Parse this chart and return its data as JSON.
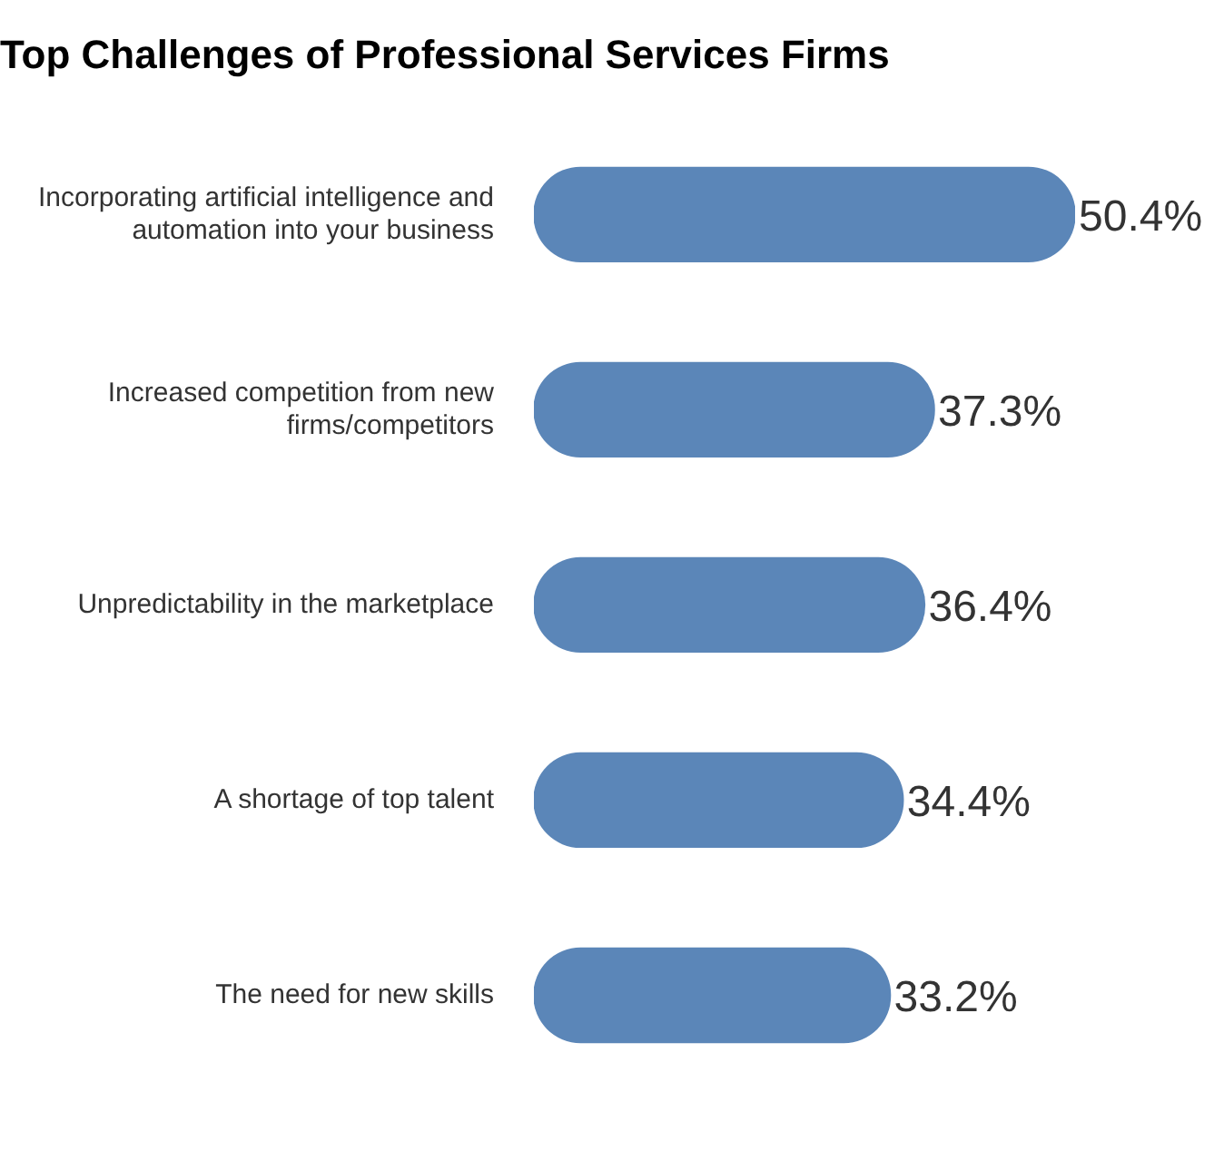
{
  "chart_data": {
    "type": "bar",
    "title": "Top Challenges of Professional Services Firms",
    "orientation": "horizontal",
    "categories": [
      "Incorporating artificial intelligence and automation into your business",
      "Increased competition from new firms/competitors",
      "Unpredictability in the marketplace",
      "A shortage of top talent",
      "The need for new skills"
    ],
    "series": [
      {
        "color": "#5b86b8",
        "values": [
          50.4,
          37.3,
          36.4,
          34.4,
          33.2
        ],
        "value_labels": [
          "50.4%",
          "37.3%",
          "36.4%",
          "34.4%",
          "33.2%"
        ]
      }
    ],
    "xlim": [
      0,
      50.4
    ],
    "tick_labels": "y",
    "legend": false
  }
}
